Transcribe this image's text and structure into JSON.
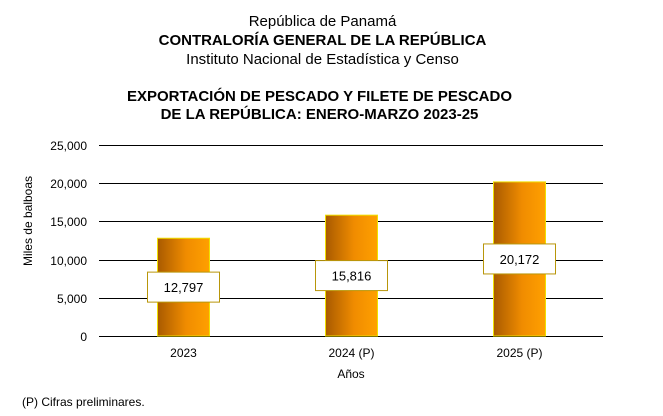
{
  "header": {
    "line1": "República de Panamá",
    "line2": "CONTRALORÍA GENERAL DE LA REPÚBLICA",
    "line3": "Instituto  Nacional de Estadística y Censo"
  },
  "footnote": "(P) Cifras  preliminares.",
  "colors": {
    "bar_dark": "#a85a00",
    "bar_light": "#ffa000",
    "bar_border": "#f0e000",
    "label_border": "#b8960a",
    "grid": "#000000"
  },
  "chart_data": {
    "type": "bar",
    "title": [
      "EXPORTACIÓN DE PESCADO Y FILETE DE PESCADO",
      "DE LA REPÚBLICA: ENERO-MARZO 2023-25"
    ],
    "categories": [
      "2023",
      "2024 (P)",
      "2025 (P)"
    ],
    "values": [
      12797,
      15816,
      20172
    ],
    "data_labels": [
      "12,797",
      "15,816",
      "20,172"
    ],
    "xlabel": "Años",
    "ylabel": "Miles de balboas",
    "ylim": [
      0,
      25000
    ],
    "yticks": [
      0,
      5000,
      10000,
      15000,
      20000,
      25000
    ],
    "ytick_labels": [
      "0",
      "5,000",
      "10,000",
      "15,000",
      "20,000",
      "25,000"
    ],
    "grid": true,
    "legend": "none"
  }
}
